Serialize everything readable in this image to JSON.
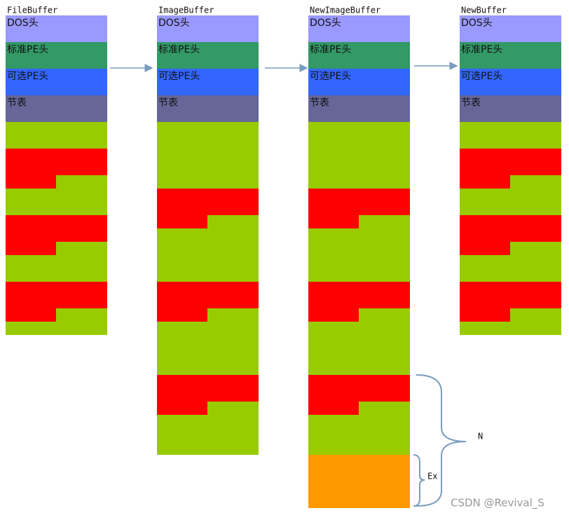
{
  "columns": [
    {
      "title": "FileBuffer",
      "headers": [
        "DOS头",
        "标准PE头",
        "可选PE头",
        "节表"
      ]
    },
    {
      "title": "ImageBuffer",
      "headers": [
        "DOS头",
        "标准PE头",
        "可选PE头",
        "节表"
      ]
    },
    {
      "title": "NewImageBuffer",
      "headers": [
        "DOS头",
        "标准PE头",
        "可选PE头",
        "节表"
      ]
    },
    {
      "title": "NewBuffer",
      "headers": [
        "DOS头",
        "标准PE头",
        "可选PE头",
        "节表"
      ]
    }
  ],
  "braces": {
    "n": "N",
    "ex": "Ex"
  },
  "watermark": "CSDN @Revival_S"
}
